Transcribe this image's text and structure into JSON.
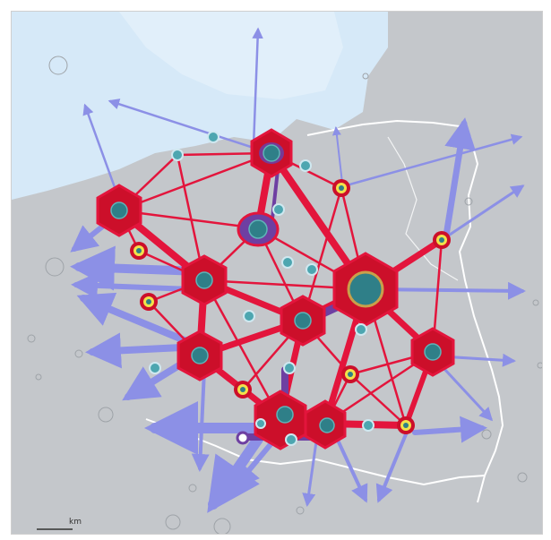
{
  "map": {
    "title": "",
    "scale_label": "km",
    "colors": {
      "land": "#c4c7cb",
      "sea": "#d6e9f8",
      "border": "#ffffff",
      "corridor": "#e3153c",
      "hub_fill": "#cc0f2a",
      "node_core": "#2f7f88",
      "link_flow": "#8c90e6",
      "purple": "#6e3fa2",
      "yellow": "#f2e24a"
    },
    "legend_visible": false
  }
}
